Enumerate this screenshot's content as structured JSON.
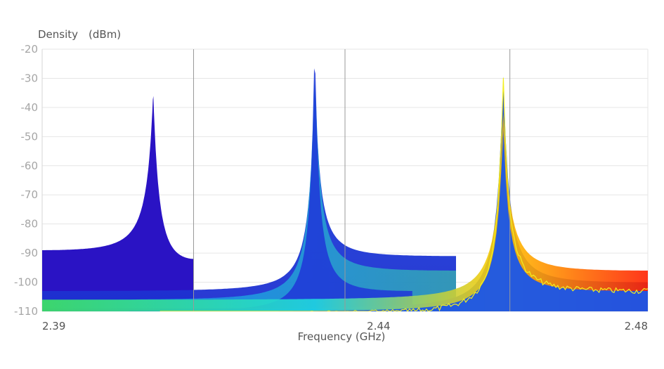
{
  "chart_data": {
    "type": "area",
    "title": "",
    "xlabel": "Frequency (GHz)",
    "ylabel": "Density　(dBm)",
    "xlim": [
      2.39,
      2.48
    ],
    "ylim": [
      -110,
      -20
    ],
    "x_ticks": [
      "2.39",
      "2.44",
      "2.48"
    ],
    "y_ticks": [
      "-20",
      "-30",
      "-40",
      "-50",
      "-60",
      "-70",
      "-80",
      "-90",
      "-100",
      "-110"
    ],
    "grid": true,
    "legend": "none",
    "series": [
      {
        "type": "density-peak",
        "center": 2.4065,
        "peak": -34,
        "left_floor": -89,
        "right_floor": -92,
        "color": "#2a13c4"
      },
      {
        "type": "density-peak",
        "center": 2.4305,
        "peak": -25,
        "left_floor": -103,
        "right_floor": -91,
        "color": "#1240d8"
      },
      {
        "type": "density-peak",
        "center": 2.4585,
        "peak": -26,
        "left_floor": -109,
        "right_floor": -100,
        "color": "#1f4fe0"
      },
      {
        "type": "trace",
        "center": 2.4585,
        "peak": -26,
        "left_floor": -110,
        "right_floor": -102,
        "color": "#f2ee20"
      }
    ],
    "colors": {
      "grid": "#e6e6e6",
      "marker_lines": "#999999",
      "density_low": "#1f1fd0",
      "density_mid": "#10c0e0",
      "density_high": "#ff2a00",
      "trace": "#f2ee20"
    },
    "vertical_markers": [
      2.4125,
      2.435,
      2.4595
    ]
  }
}
